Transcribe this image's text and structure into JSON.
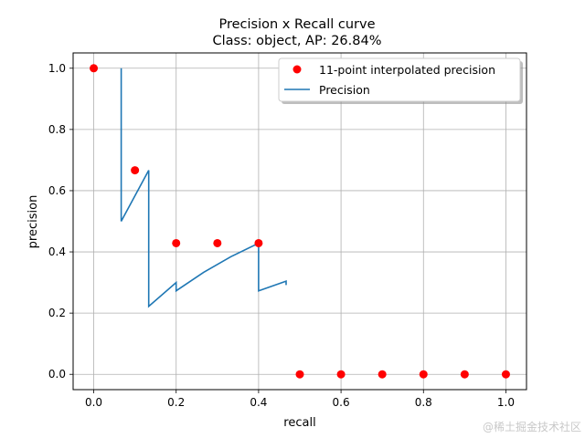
{
  "chart_data": {
    "type": "line",
    "title": "Precision x Recall curve",
    "subtitle": "Class: object, AP: 26.84%",
    "xlabel": "recall",
    "ylabel": "precision",
    "xlim": [
      -0.05,
      1.05
    ],
    "ylim": [
      -0.05,
      1.05
    ],
    "x_ticks": [
      "0.0",
      "0.2",
      "0.4",
      "0.6",
      "0.8",
      "1.0"
    ],
    "y_ticks": [
      "0.0",
      "0.2",
      "0.4",
      "0.6",
      "0.8",
      "1.0"
    ],
    "grid": true,
    "legend_position": "top-right",
    "series": [
      {
        "name": "11-point interpolated precision",
        "kind": "scatter",
        "color": "#ff0000",
        "points": [
          [
            0.0,
            1.0
          ],
          [
            0.1,
            0.6667
          ],
          [
            0.2,
            0.4286
          ],
          [
            0.3,
            0.4286
          ],
          [
            0.4,
            0.4286
          ],
          [
            0.5,
            0.0
          ],
          [
            0.6,
            0.0
          ],
          [
            0.7,
            0.0
          ],
          [
            0.8,
            0.0
          ],
          [
            0.9,
            0.0
          ],
          [
            1.0,
            0.0
          ]
        ]
      },
      {
        "name": "Precision",
        "kind": "line",
        "color": "#1f77b4",
        "points": [
          [
            0.0667,
            1.0
          ],
          [
            0.0667,
            0.5
          ],
          [
            0.1333,
            0.6667
          ],
          [
            0.1333,
            0.2222
          ],
          [
            0.2,
            0.3
          ],
          [
            0.2,
            0.2727
          ],
          [
            0.2667,
            0.3333
          ],
          [
            0.3333,
            0.3846
          ],
          [
            0.4,
            0.4286
          ],
          [
            0.4,
            0.2727
          ],
          [
            0.4667,
            0.3043
          ],
          [
            0.4667,
            0.2917
          ]
        ]
      }
    ]
  },
  "watermark": "@稀土掘金技术社区"
}
